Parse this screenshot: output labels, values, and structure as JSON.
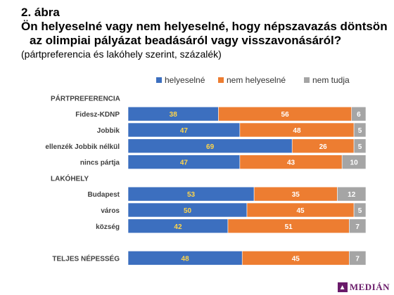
{
  "figure": {
    "label": "2. ábra",
    "title_line1": "Ön helyeselné vagy nem helyeselné, hogy népszavazás döntsön",
    "title_line2": "az olimpiai pályázat beadásáról vagy visszavonásáról?",
    "subtitle": "(pártpreferencia és lakóhely szerint, százalék)"
  },
  "logo": {
    "text": "MEDIÁN",
    "icon": "median-logo-icon"
  },
  "colors": {
    "helyeselne": "#3c6fbf",
    "nem_helyeselne": "#ed7d31",
    "nem_tudja": "#a5a5a5",
    "value_label_blue": "#ffd54a",
    "value_label_other": "#ffffff"
  },
  "chart_data": {
    "type": "bar",
    "orientation": "horizontal",
    "stacked": true,
    "xlim": [
      0,
      100
    ],
    "legend_position": "top",
    "grid": false,
    "series": [
      {
        "name": "helyeselné"
      },
      {
        "name": "nem helyeselné"
      },
      {
        "name": "nem tudja"
      }
    ],
    "rows": [
      {
        "label": "PÁRTPREFERENCIA",
        "header": true
      },
      {
        "label": "Fidesz-KDNP",
        "values": [
          38,
          56,
          6
        ]
      },
      {
        "label": "Jobbik",
        "values": [
          47,
          48,
          5
        ]
      },
      {
        "label": "ellenzék Jobbik nélkül",
        "values": [
          69,
          26,
          5
        ]
      },
      {
        "label": "nincs pártja",
        "values": [
          47,
          43,
          10
        ]
      },
      {
        "label": "LAKÓHELY",
        "header": true
      },
      {
        "label": "Budapest",
        "values": [
          53,
          35,
          12
        ]
      },
      {
        "label": "város",
        "values": [
          50,
          45,
          5
        ]
      },
      {
        "label": "község",
        "values": [
          42,
          51,
          7
        ]
      },
      {
        "label": "",
        "spacer": true
      },
      {
        "label": "TELJES NÉPESSÉG",
        "values": [
          48,
          45,
          7
        ]
      }
    ]
  }
}
